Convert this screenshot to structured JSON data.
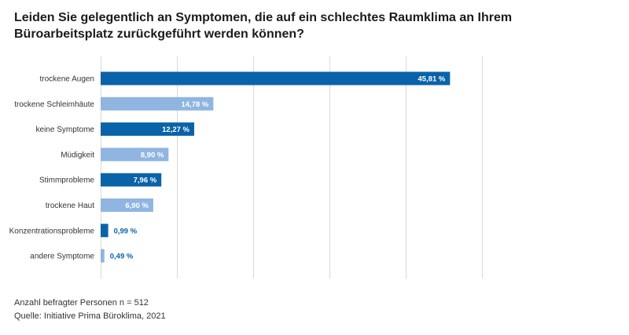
{
  "chart_data": {
    "type": "bar",
    "orientation": "horizontal",
    "title": "Leiden Sie gelegentlich an Symptomen, die auf ein schlechtes Raumklima an Ihrem Büroarbeitsplatz zurückgeführt werden können?",
    "categories": [
      "trockene Augen",
      "trockene Schleimhäute",
      "keine Symptome",
      "Müdigkeit",
      "Stimmprobleme",
      "trockene Haut",
      "Konzentrationsprobleme",
      "andere Symptome"
    ],
    "values": [
      45.81,
      14.78,
      12.27,
      8.9,
      7.96,
      6.9,
      0.99,
      0.49
    ],
    "value_labels": [
      "45,81 %",
      "14,78 %",
      "12,27 %",
      "8,90 %",
      "7,96 %",
      "6,90 %",
      "0,99 %",
      "0,49 %"
    ],
    "bar_colors": [
      "#0a63a8",
      "#8fb5e0",
      "#0a63a8",
      "#8fb5e0",
      "#0a63a8",
      "#8fb5e0",
      "#0a63a8",
      "#8fb5e0"
    ],
    "xlim": [
      0,
      50
    ],
    "grid_values": [
      0,
      10,
      20,
      30,
      40,
      50
    ],
    "grid": true,
    "xlabel": "",
    "ylabel": ""
  },
  "footer": {
    "respondents": "Anzahl befragter Personen n = 512",
    "source": "Quelle: Initiative Prima Büroklima, 2021"
  },
  "colors": {
    "dark_bar": "#0a63a8",
    "light_bar": "#8fb5e0",
    "grid": "#d9d9d9",
    "outside_label": "#0a63a8"
  }
}
